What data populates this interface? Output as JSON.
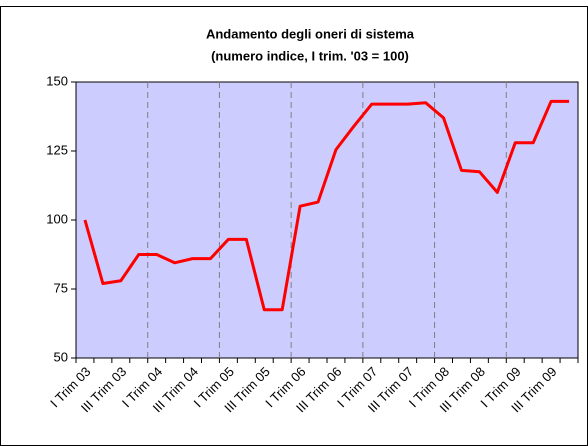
{
  "chart_data": {
    "type": "line",
    "title": "Andamento degli oneri di sistema",
    "subtitle": "(numero indice, I trim. '03 = 100)",
    "categories": [
      "I Trim 03",
      null,
      "III Trim 03",
      null,
      "I Trim 04",
      null,
      "III Trim 04",
      null,
      "I Trim 05",
      null,
      "III Trim 05",
      null,
      "I Trim 06",
      null,
      "III Trim 06",
      null,
      "I Trim 07",
      null,
      "III Trim 07",
      null,
      "I Trim 08",
      null,
      "III Trim 08",
      null,
      "I Trim 09",
      null,
      "III Trim 09",
      null
    ],
    "series": [
      {
        "name": "Oneri di sistema",
        "color": "#ff0000",
        "values": [
          100,
          77,
          78,
          87.5,
          87.5,
          84.5,
          86,
          86,
          93,
          93,
          67.5,
          67.5,
          105,
          106.5,
          125.5,
          134,
          142,
          142,
          142,
          142.5,
          137,
          118,
          117.5,
          110,
          128,
          128,
          143,
          143
        ]
      }
    ],
    "ylim": [
      50,
      150
    ],
    "yticks": [
      50,
      75,
      100,
      125,
      150
    ],
    "plot_background": "#ccccff"
  }
}
